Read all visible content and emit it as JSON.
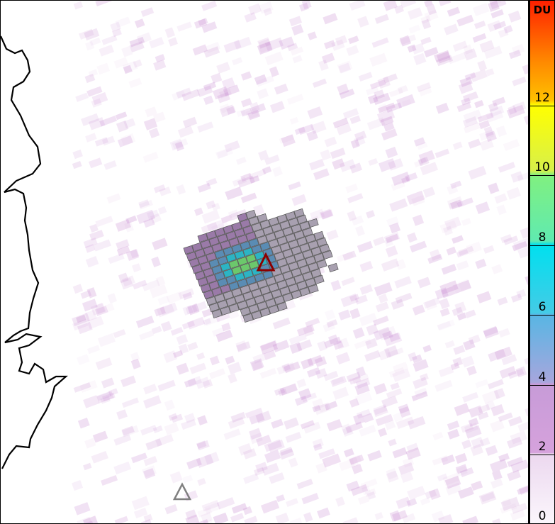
{
  "colorbar": {
    "unit": "DU",
    "range": [
      0,
      15
    ],
    "ticks": [
      "0",
      "2",
      "4",
      "6",
      "8",
      "10",
      "12"
    ]
  },
  "markers": [
    {
      "name": "active-volcano",
      "color": "#8b0000"
    },
    {
      "name": "volcano",
      "color": "#808080"
    }
  ],
  "colors": {
    "coastline": "#000000",
    "plume_outline": "#555555"
  }
}
